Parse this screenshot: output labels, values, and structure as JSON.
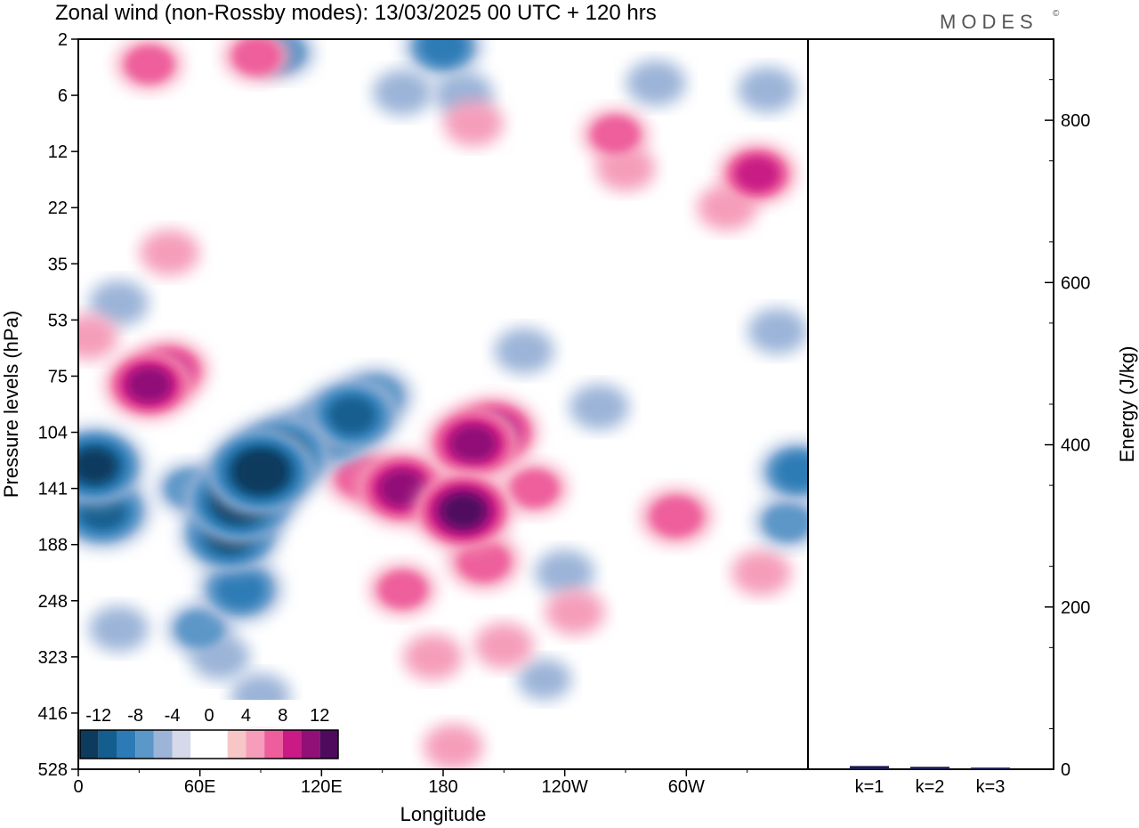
{
  "title": "Zonal wind (non-Rossby modes):  13/03/2025  00 UTC  + 120 hrs",
  "brand": "MODES",
  "brand_mark": "©",
  "colors": {
    "neg": [
      "#0d3b5e",
      "#135e8e",
      "#2d7bb6",
      "#5b97c8",
      "#9bb4d8",
      "#d6d9ea"
    ],
    "zero": "#ffffff",
    "pos": [
      "#f7c6c6",
      "#f59dba",
      "#ee5e9c",
      "#c91a85",
      "#911078",
      "#4f0a5e"
    ],
    "bar": "#1a1a4e"
  },
  "chart_data": [
    {
      "type": "heatmap",
      "title": "Zonal wind (non-Rossby modes):  13/03/2025  00 UTC  + 120 hrs",
      "xlabel": "Longitude",
      "ylabel": "Pressure levels (hPa)",
      "x_ticks": [
        "0",
        "60E",
        "120E",
        "180",
        "120W",
        "60W"
      ],
      "y_ticks": [
        "2",
        "6",
        "12",
        "22",
        "35",
        "53",
        "75",
        "104",
        "141",
        "188",
        "248",
        "323",
        "416",
        "528"
      ],
      "colorbar": {
        "labels": [
          "-12",
          "-8",
          "-4",
          "0",
          "4",
          "8",
          "12"
        ],
        "levels": [
          -14,
          -12,
          -10,
          -8,
          -6,
          -4,
          -2,
          2,
          4,
          6,
          8,
          10,
          12,
          14
        ]
      },
      "features": [
        {
          "lon": 180,
          "level": 0.13,
          "value": -6
        },
        {
          "lon": 100,
          "level": 0.24,
          "value": -4
        },
        {
          "lon": 190,
          "level": 0.98,
          "value": -3
        },
        {
          "lon": 160,
          "level": 0.95,
          "value": -3
        },
        {
          "lon": 340,
          "level": 0.9,
          "value": -3
        },
        {
          "lon": 285,
          "level": 0.78,
          "value": -3
        },
        {
          "lon": 20,
          "level": 4.7,
          "value": -3
        },
        {
          "lon": 220,
          "level": 5.55,
          "value": -3
        },
        {
          "lon": 257,
          "level": 6.55,
          "value": -3
        },
        {
          "lon": 345,
          "level": 5.2,
          "value": -3
        },
        {
          "lon": 355,
          "level": 7.7,
          "value": -6
        },
        {
          "lon": 350,
          "level": 8.6,
          "value": -4
        },
        {
          "lon": 8,
          "level": 7.6,
          "value": -10
        },
        {
          "lon": 12,
          "level": 8.4,
          "value": -9
        },
        {
          "lon": 20,
          "level": 10.5,
          "value": -3
        },
        {
          "lon": 55,
          "level": 8.0,
          "value": -4
        },
        {
          "lon": 60,
          "level": 10.5,
          "value": -4
        },
        {
          "lon": 70,
          "level": 11.0,
          "value": -3
        },
        {
          "lon": 90,
          "level": 11.7,
          "value": -3
        },
        {
          "lon": 75,
          "level": 8.8,
          "value": -10
        },
        {
          "lon": 80,
          "level": 8.2,
          "value": -12
        },
        {
          "lon": 90,
          "level": 7.7,
          "value": -12
        },
        {
          "lon": 100,
          "level": 7.4,
          "value": -10
        },
        {
          "lon": 110,
          "level": 7.15,
          "value": -7
        },
        {
          "lon": 125,
          "level": 6.95,
          "value": -8
        },
        {
          "lon": 135,
          "level": 6.7,
          "value": -9
        },
        {
          "lon": 147,
          "level": 6.35,
          "value": -5
        },
        {
          "lon": 80,
          "level": 9.8,
          "value": -7
        },
        {
          "lon": 240,
          "level": 9.5,
          "value": -3
        },
        {
          "lon": 230,
          "level": 11.4,
          "value": -2
        },
        {
          "lon": 35,
          "level": 0.45,
          "value": 4
        },
        {
          "lon": 88,
          "level": 0.3,
          "value": 4
        },
        {
          "lon": 195,
          "level": 1.5,
          "value": 3
        },
        {
          "lon": 265,
          "level": 1.7,
          "value": 4
        },
        {
          "lon": 335,
          "level": 2.4,
          "value": 6
        },
        {
          "lon": 320,
          "level": 3.0,
          "value": 3
        },
        {
          "lon": 270,
          "level": 2.3,
          "value": 3
        },
        {
          "lon": 45,
          "level": 3.8,
          "value": 3
        },
        {
          "lon": 5,
          "level": 5.3,
          "value": 3
        },
        {
          "lon": 35,
          "level": 6.15,
          "value": 8
        },
        {
          "lon": 45,
          "level": 5.9,
          "value": 6
        },
        {
          "lon": 160,
          "level": 8.0,
          "value": 9
        },
        {
          "lon": 140,
          "level": 7.8,
          "value": 5
        },
        {
          "lon": 195,
          "level": 7.2,
          "value": 9
        },
        {
          "lon": 205,
          "level": 7.0,
          "value": 8
        },
        {
          "lon": 190,
          "level": 8.4,
          "value": 10
        },
        {
          "lon": 200,
          "level": 9.3,
          "value": 5
        },
        {
          "lon": 225,
          "level": 8.0,
          "value": 4
        },
        {
          "lon": 160,
          "level": 9.8,
          "value": 4
        },
        {
          "lon": 175,
          "level": 11.0,
          "value": 3
        },
        {
          "lon": 210,
          "level": 10.8,
          "value": 3
        },
        {
          "lon": 245,
          "level": 10.2,
          "value": 3
        },
        {
          "lon": 295,
          "level": 8.5,
          "value": 5
        },
        {
          "lon": 337,
          "level": 9.5,
          "value": 3
        },
        {
          "lon": 185,
          "level": 12.6,
          "value": 3
        }
      ]
    },
    {
      "type": "bar",
      "categories": [
        "k=1",
        "k=2",
        "k=3"
      ],
      "values": [
        4,
        3,
        2
      ],
      "ylabel": "Energy (J/kg)",
      "y_ticks": [
        "0",
        "200",
        "400",
        "600",
        "800"
      ],
      "ylim": [
        0,
        900
      ]
    }
  ]
}
